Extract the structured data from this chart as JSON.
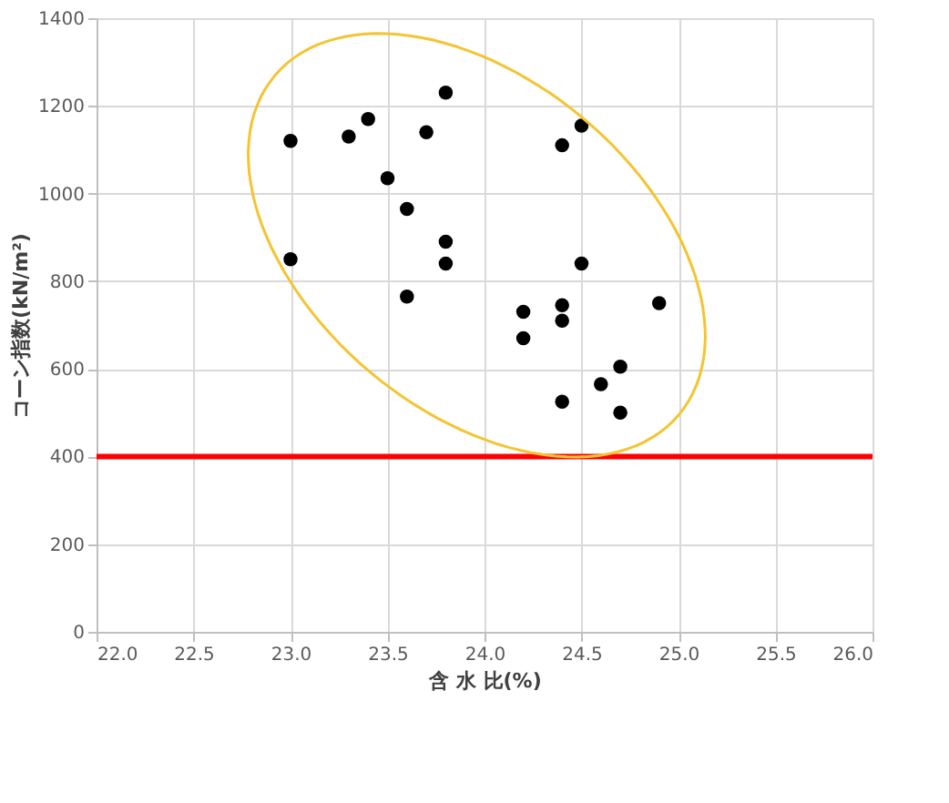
{
  "chart_data": {
    "type": "scatter",
    "xlabel": "含 水 比(%)",
    "ylabel": "コーン指数(kN/m²)",
    "x": [
      23.0,
      23.3,
      23.4,
      23.5,
      23.7,
      23.8,
      24.4,
      24.5,
      23.6,
      23.8,
      23.8,
      23.0,
      23.6,
      24.5,
      24.9,
      24.2,
      24.4,
      24.4,
      24.2,
      24.7,
      24.6,
      24.4,
      24.7
    ],
    "series": [
      {
        "color": "#000000",
        "values": [
          1120,
          1130,
          1170,
          1035,
          1140,
          1230,
          1110,
          1155,
          965,
          890,
          840,
          850,
          765,
          840,
          750,
          730,
          745,
          710,
          670,
          605,
          565,
          525,
          500
        ]
      }
    ],
    "xlim": [
      22.0,
      26.0
    ],
    "xticks": [
      {
        "value": 22.0,
        "label": "22.0"
      },
      {
        "value": 22.5,
        "label": "22.5"
      },
      {
        "value": 23.0,
        "label": "23.0"
      },
      {
        "value": 23.5,
        "label": "23.5"
      },
      {
        "value": 24.0,
        "label": "24.0"
      },
      {
        "value": 24.5,
        "label": "24.5"
      },
      {
        "value": 25.0,
        "label": "25.0"
      },
      {
        "value": 25.5,
        "label": "25.5"
      },
      {
        "value": 26.0,
        "label": "26.0"
      }
    ],
    "ylim": [
      0,
      1400
    ],
    "yticks": [
      0,
      200,
      400,
      600,
      800,
      1000,
      1200,
      1400
    ],
    "ref_lines": [
      {
        "axis": "y",
        "value": 400,
        "color": "#ff0000"
      }
    ],
    "grid": true,
    "marker": "circle"
  }
}
